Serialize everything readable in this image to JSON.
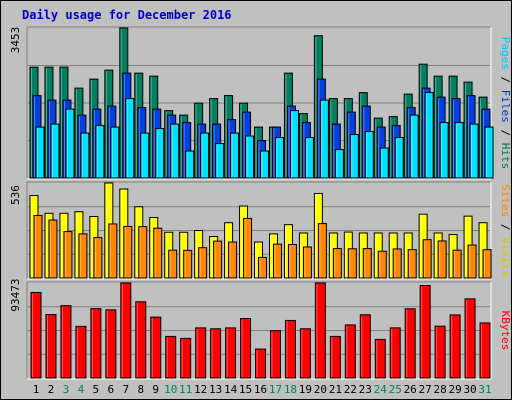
{
  "chart_data": {
    "type": "bar",
    "title": "Daily usage for December 2016",
    "categories": [
      "1",
      "2",
      "3",
      "4",
      "5",
      "6",
      "7",
      "8",
      "9",
      "10",
      "11",
      "12",
      "13",
      "14",
      "15",
      "16",
      "17",
      "18",
      "19",
      "20",
      "21",
      "22",
      "23",
      "24",
      "25",
      "26",
      "27",
      "28",
      "29",
      "30",
      "31"
    ],
    "weekend_days": [
      "3",
      "4",
      "10",
      "11",
      "17",
      "18",
      "24",
      "25",
      "31"
    ],
    "panels": [
      {
        "name": "pages-files-hits",
        "ymax": 3453,
        "ymax_label": "3453",
        "right_labels": [
          {
            "text": "Pages",
            "color": "#00c8ff"
          },
          {
            "text": " / ",
            "color": "#000000"
          },
          {
            "text": "Files",
            "color": "#0033dd"
          },
          {
            "text": " / ",
            "color": "#000000"
          },
          {
            "text": "Hits",
            "color": "#007755"
          }
        ],
        "series": [
          {
            "name": "Hits",
            "color": "#008060",
            "values": [
              2552,
              2552,
              2552,
              2069,
              2276,
              2483,
              3453,
              2414,
              2345,
              1552,
              1448,
              1724,
              1828,
              1897,
              1724,
              1172,
              1172,
              2414,
              1483,
              3276,
              1828,
              1828,
              1966,
              1379,
              1414,
              1931,
              2621,
              2345,
              2345,
              2207,
              1862
            ]
          },
          {
            "name": "Files",
            "color": "#0040e0",
            "values": [
              1897,
              1793,
              1793,
              1448,
              1586,
              1655,
              2414,
              1621,
              1586,
              1448,
              1276,
              1241,
              1241,
              1345,
              1517,
              862,
              1172,
              1655,
              1276,
              2276,
              1241,
              1517,
              1655,
              1172,
              1207,
              1621,
              2069,
              1862,
              1828,
              1897,
              1586
            ]
          },
          {
            "name": "Pages",
            "color": "#00e0ff",
            "values": [
              1172,
              1241,
              1586,
              1034,
              1207,
              1172,
              1828,
              1034,
              1138,
              1241,
              621,
              1034,
              793,
              1034,
              966,
              621,
              931,
              1552,
              931,
              1793,
              655,
              1000,
              1069,
              690,
              931,
              1448,
              1966,
              1276,
              1276,
              1241,
              1172
            ]
          }
        ]
      },
      {
        "name": "sites-visits",
        "ymax": 536,
        "ymax_label": "536",
        "right_labels": [
          {
            "text": "Sites",
            "color": "#ff8800"
          },
          {
            "text": " / ",
            "color": "#000000"
          },
          {
            "text": "Visits",
            "color": "#cccc00"
          }
        ],
        "series": [
          {
            "name": "Visits",
            "color": "#ffff00",
            "values": [
              465,
              365,
              365,
              374,
              347,
              536,
              502,
              402,
              341,
              258,
              258,
              268,
              234,
              312,
              406,
              203,
              249,
              301,
              254,
              477,
              254,
              259,
              254,
              254,
              254,
              254,
              360,
              254,
              245,
              349,
              312
            ]
          },
          {
            "name": "Sites",
            "color": "#ff8800",
            "values": [
              353,
              327,
              262,
              249,
              228,
              305,
              291,
              290,
              281,
              157,
              156,
              171,
              208,
              203,
              336,
              116,
              191,
              189,
              175,
              307,
              166,
              165,
              166,
              151,
              164,
              160,
              216,
              209,
              157,
              186,
              160
            ]
          }
        ]
      },
      {
        "name": "kbytes",
        "ymax": 93473,
        "ymax_label": "93473",
        "right_labels": [
          {
            "text": "KBytes",
            "color": "#ff0000"
          }
        ],
        "series": [
          {
            "name": "KBytes",
            "color": "#ff0000",
            "values": [
              84146,
              62459,
              71170,
              50820,
              68220,
              67080,
              93473,
              74990,
              59920,
              40920,
              39020,
              49310,
              48450,
              49310,
              58520,
              28470,
              46550,
              56630,
              48450,
              93473,
              40910,
              52240,
              62190,
              37970,
              49310,
              68060,
              91010,
              51000,
              62070,
              77890,
              54170
            ]
          }
        ]
      }
    ]
  }
}
